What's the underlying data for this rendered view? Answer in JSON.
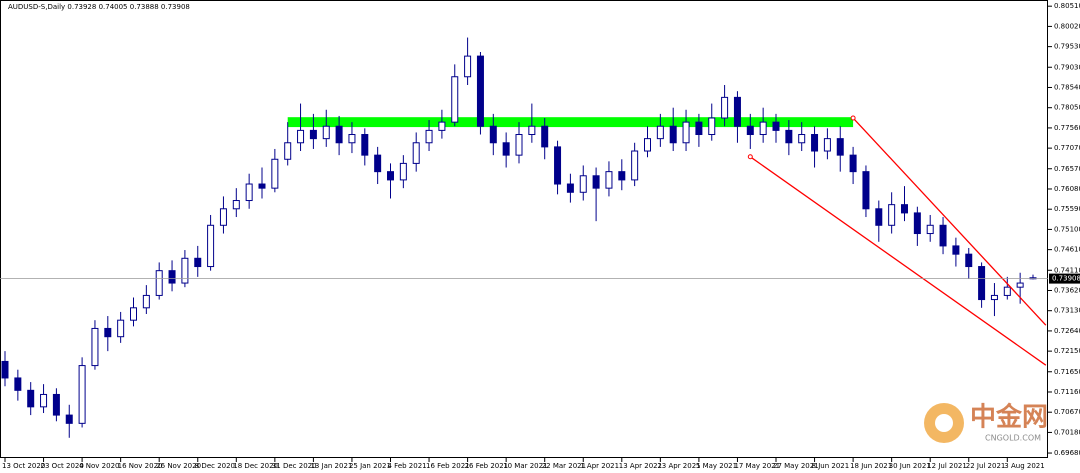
{
  "chart_data": {
    "type": "candlestick",
    "title": "AUDUSD-S,Daily  0.73928 0.74005 0.73888 0.73908",
    "color": "#00008b",
    "categories": [
      "13 Oct 2020",
      null,
      null,
      "23 Oct 2020",
      null,
      null,
      "4 Nov 2020",
      null,
      null,
      "16 Nov 2020",
      null,
      null,
      "26 Nov 2020",
      null,
      null,
      "8 Dec 2020",
      null,
      null,
      "18 Dec 2020",
      null,
      null,
      "31 Dec 2020",
      null,
      null,
      "13 Jan 2021",
      null,
      null,
      "25 Jan 2021",
      null,
      null,
      "4 Feb 2021",
      null,
      null,
      "16 Feb 2021",
      null,
      null,
      "26 Feb 2021",
      null,
      null,
      "10 Mar 2021",
      null,
      null,
      "22 Mar 2021",
      null,
      null,
      "1 Apr 2021",
      null,
      null,
      "13 Apr 2021",
      null,
      null,
      "23 Apr 2021",
      null,
      null,
      "5 May 2021",
      null,
      null,
      "17 May 2021",
      null,
      null,
      "27 May 2021",
      null,
      null,
      "8 Jun 2021",
      null,
      null,
      "18 Jun 2021",
      null,
      null,
      "30 Jun 2021",
      null,
      null,
      "12 Jul 2021",
      null,
      null,
      "22 Jul 2021",
      null,
      null,
      "3 Aug 2021",
      null,
      null
    ],
    "open": [
      0.719,
      0.715,
      0.712,
      0.708,
      0.711,
      0.706,
      0.704,
      0.718,
      0.727,
      0.725,
      0.729,
      0.732,
      0.735,
      0.741,
      0.738,
      0.744,
      0.742,
      0.752,
      0.756,
      0.758,
      0.762,
      0.761,
      0.768,
      0.772,
      0.775,
      0.773,
      0.776,
      0.772,
      0.774,
      0.769,
      0.765,
      0.763,
      0.767,
      0.772,
      0.775,
      0.777,
      0.788,
      0.793,
      0.776,
      0.772,
      0.769,
      0.774,
      0.776,
      0.771,
      0.762,
      0.76,
      0.764,
      0.761,
      0.765,
      0.763,
      0.77,
      0.773,
      0.776,
      0.772,
      0.777,
      0.774,
      0.778,
      0.783,
      0.776,
      0.774,
      0.777,
      0.775,
      0.772,
      0.774,
      0.77,
      0.773,
      0.769,
      0.765,
      0.756,
      0.752,
      0.757,
      0.755,
      0.75,
      0.752,
      0.747,
      0.745,
      0.742,
      0.734,
      0.735,
      0.737,
      0.73928
    ],
    "high": [
      0.7215,
      0.717,
      0.714,
      0.7135,
      0.7125,
      0.7085,
      0.72,
      0.729,
      0.73,
      0.731,
      0.7345,
      0.7375,
      0.743,
      0.7435,
      0.746,
      0.747,
      0.7545,
      0.759,
      0.761,
      0.7645,
      0.766,
      0.7705,
      0.777,
      0.7815,
      0.779,
      0.78,
      0.7785,
      0.777,
      0.7755,
      0.771,
      0.767,
      0.769,
      0.7745,
      0.7775,
      0.78,
      0.791,
      0.7975,
      0.794,
      0.779,
      0.7745,
      0.777,
      0.7815,
      0.778,
      0.7725,
      0.7645,
      0.7665,
      0.766,
      0.7675,
      0.768,
      0.772,
      0.776,
      0.779,
      0.7805,
      0.78,
      0.779,
      0.7815,
      0.786,
      0.7845,
      0.779,
      0.7805,
      0.779,
      0.7775,
      0.777,
      0.776,
      0.7755,
      0.776,
      0.771,
      0.7665,
      0.758,
      0.76,
      0.7615,
      0.7565,
      0.7545,
      0.754,
      0.749,
      0.7465,
      0.743,
      0.738,
      0.7395,
      0.7405,
      0.74005
    ],
    "low": [
      0.713,
      0.7095,
      0.706,
      0.7065,
      0.7045,
      0.7005,
      0.703,
      0.717,
      0.7215,
      0.7235,
      0.7275,
      0.7305,
      0.734,
      0.736,
      0.737,
      0.7395,
      0.741,
      0.75,
      0.754,
      0.756,
      0.7585,
      0.76,
      0.7665,
      0.77,
      0.7705,
      0.771,
      0.769,
      0.7695,
      0.7665,
      0.762,
      0.7585,
      0.761,
      0.765,
      0.77,
      0.773,
      0.776,
      0.786,
      0.774,
      0.769,
      0.766,
      0.767,
      0.772,
      0.768,
      0.7595,
      0.7575,
      0.758,
      0.753,
      0.759,
      0.7605,
      0.7615,
      0.7685,
      0.771,
      0.77,
      0.77,
      0.771,
      0.7725,
      0.776,
      0.772,
      0.7705,
      0.772,
      0.772,
      0.769,
      0.77,
      0.766,
      0.768,
      0.765,
      0.762,
      0.754,
      0.748,
      0.75,
      0.753,
      0.747,
      0.748,
      0.745,
      0.742,
      0.739,
      0.732,
      0.73,
      0.734,
      0.733,
      0.73888
    ],
    "close": [
      0.715,
      0.712,
      0.708,
      0.711,
      0.706,
      0.704,
      0.718,
      0.727,
      0.725,
      0.729,
      0.732,
      0.735,
      0.741,
      0.738,
      0.744,
      0.742,
      0.752,
      0.756,
      0.758,
      0.762,
      0.761,
      0.768,
      0.772,
      0.775,
      0.773,
      0.776,
      0.772,
      0.774,
      0.769,
      0.765,
      0.763,
      0.767,
      0.772,
      0.775,
      0.777,
      0.788,
      0.793,
      0.776,
      0.772,
      0.769,
      0.774,
      0.776,
      0.771,
      0.762,
      0.76,
      0.764,
      0.761,
      0.765,
      0.763,
      0.77,
      0.773,
      0.776,
      0.772,
      0.777,
      0.774,
      0.778,
      0.783,
      0.776,
      0.774,
      0.777,
      0.775,
      0.772,
      0.774,
      0.77,
      0.773,
      0.769,
      0.765,
      0.756,
      0.752,
      0.757,
      0.755,
      0.75,
      0.752,
      0.747,
      0.745,
      0.742,
      0.734,
      0.735,
      0.737,
      0.738,
      0.73908
    ],
    "ylim": [
      0.6956,
      0.8066
    ],
    "yticks": [
      {
        "value": 0.8051,
        "label": "0.80510"
      },
      {
        "value": 0.8002,
        "label": "0.80020"
      },
      {
        "value": 0.7953,
        "label": "0.79530"
      },
      {
        "value": 0.7903,
        "label": "0.79030"
      },
      {
        "value": 0.7854,
        "label": "0.78540"
      },
      {
        "value": 0.7805,
        "label": "0.78050"
      },
      {
        "value": 0.7756,
        "label": "0.77560"
      },
      {
        "value": 0.7707,
        "label": "0.77070"
      },
      {
        "value": 0.7657,
        "label": "0.76570"
      },
      {
        "value": 0.7608,
        "label": "0.76080"
      },
      {
        "value": 0.7559,
        "label": "0.75590"
      },
      {
        "value": 0.751,
        "label": "0.75100"
      },
      {
        "value": 0.7461,
        "label": "0.74610"
      },
      {
        "value": 0.7411,
        "label": "0.74110"
      },
      {
        "value": 0.7362,
        "label": "0.73620"
      },
      {
        "value": 0.7313,
        "label": "0.73130"
      },
      {
        "value": 0.7264,
        "label": "0.72640"
      },
      {
        "value": 0.7215,
        "label": "0.72150"
      },
      {
        "value": 0.7165,
        "label": "0.71650"
      },
      {
        "value": 0.7116,
        "label": "0.71160"
      },
      {
        "value": 0.7067,
        "label": "0.70670"
      },
      {
        "value": 0.7018,
        "label": "0.70180"
      },
      {
        "value": 0.6968,
        "label": "0.69680"
      }
    ],
    "zone": {
      "from": 22,
      "to": 66,
      "ylim": [
        0.7758,
        0.7782
      ],
      "color": "#00ff00"
    },
    "trendlines": [
      {
        "x": [
          66,
          81
        ],
        "y": [
          0.778,
          0.7278
        ],
        "color": "#ff0000"
      },
      {
        "x": [
          58,
          81
        ],
        "y": [
          0.7686,
          0.7181
        ],
        "color": "#ff0000"
      }
    ],
    "watermark": {
      "text": "中金网",
      "sub": "CNGOLD.COM"
    }
  }
}
